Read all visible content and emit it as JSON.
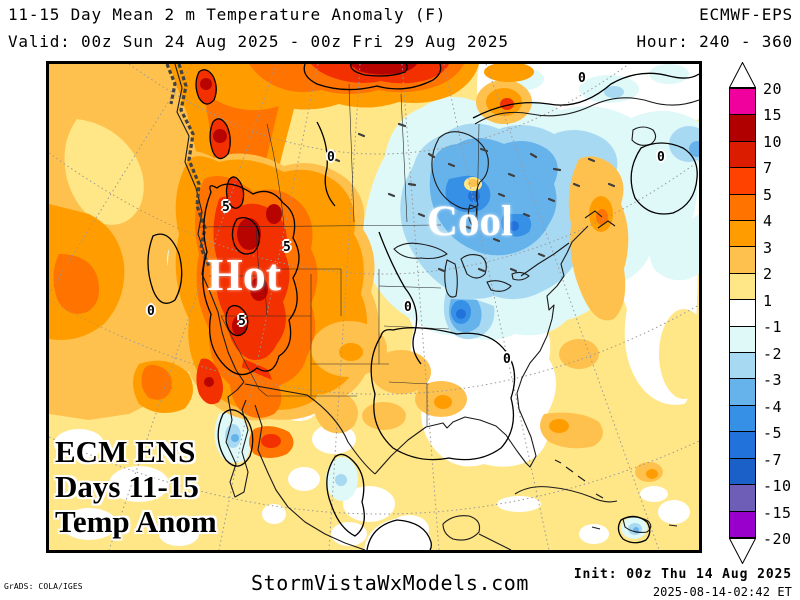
{
  "header": {
    "title": "11-15 Day Mean 2 m Temperature Anomaly (F)",
    "model": "ECMWF-EPS",
    "valid": "Valid: 00z Sun 24 Aug 2025 - 00z Fri 29 Aug 2025",
    "hour": "Hour: 240 - 360"
  },
  "map": {
    "hot_label": "Hot",
    "cool_label": "Cool",
    "corner_lines": [
      "ECM ENS",
      "Days 11-15",
      "Temp Anom"
    ],
    "contour_labels": [
      "5",
      "5",
      "5",
      "0",
      "0",
      "0",
      "0",
      "0",
      "0"
    ]
  },
  "colorbar": {
    "tick_labels": [
      "20",
      "15",
      "10",
      "7",
      "5",
      "4",
      "3",
      "2",
      "1",
      "-1",
      "-2",
      "-3",
      "-4",
      "-5",
      "-7",
      "-10",
      "-15",
      "-20"
    ],
    "cell_colors": [
      "#F0009C",
      "#B00000",
      "#DC1C00",
      "#FF4200",
      "#FF7300",
      "#FF9D00",
      "#FFC14D",
      "#FFE687",
      "#FFFFFF",
      "#DFF8F8",
      "#A8D9F2",
      "#66B3EC",
      "#3690E6",
      "#2272DC",
      "#1B5FC8",
      "#6E5EB8",
      "#9900CC"
    ]
  },
  "palette": {
    "c0": "#FFFFFF",
    "c2": "#FFE687",
    "c3": "#FFC14D",
    "c4": "#FF9D00",
    "c5": "#FF7300",
    "c7": "#F23000",
    "c10": "#B80400",
    "cm1": "#DFF8F8",
    "cm2": "#A8D9F2",
    "cm3": "#66B3EC",
    "cm4": "#3690E6",
    "cm5": "#2272DC"
  },
  "footer": {
    "credit": "GrADS: COLA/IGES",
    "watermark": "StormVistaWxModels.com",
    "init": "Init: 00z Thu 14 Aug 2025",
    "generated": "2025-08-14-02:42 ET"
  }
}
